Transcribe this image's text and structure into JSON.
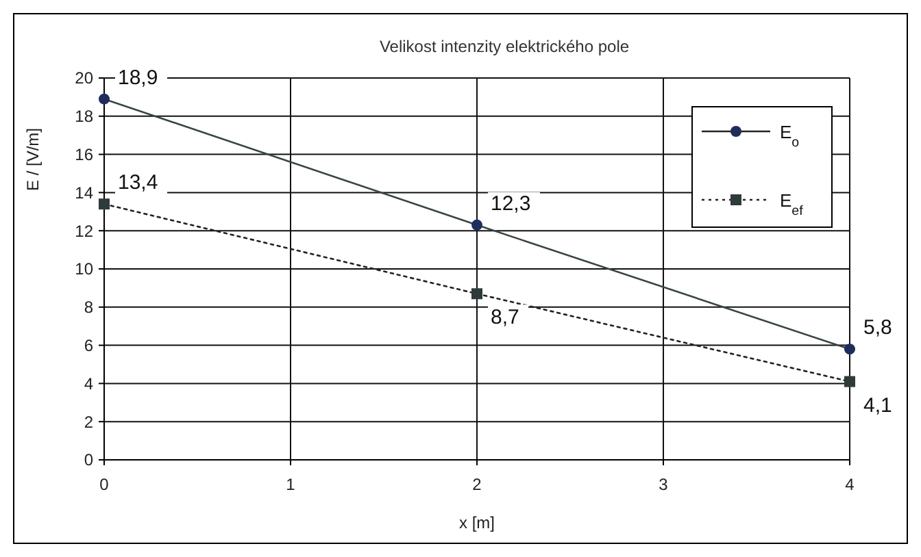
{
  "chart_data": {
    "type": "line",
    "title": "Velikost intenzity elektrického pole",
    "xlabel": "x [m]",
    "ylabel": "E / [V/m]",
    "x": [
      0,
      2,
      4
    ],
    "series": [
      {
        "name": "E$_{o}$",
        "color": "#1f2d5c",
        "values": [
          18.9,
          12.3,
          5.8
        ],
        "value_labels": [
          "18,9",
          "12,3",
          "5,8"
        ],
        "marker": "circle",
        "line_style": "solid"
      },
      {
        "name": "E$_{ef}$",
        "color": "#2f3b3b",
        "values": [
          13.4,
          8.7,
          4.1
        ],
        "value_labels": [
          "13,4",
          "8,7",
          "4,1"
        ],
        "marker": "square",
        "line_style": "dotted"
      }
    ],
    "xlim": [
      0,
      4
    ],
    "xticks": [
      0,
      1,
      2,
      3,
      4
    ],
    "ylim": [
      0,
      20
    ],
    "yticks": [
      0,
      2,
      4,
      6,
      8,
      10,
      12,
      14,
      16,
      18,
      20
    ],
    "grid": true,
    "legend": "top right"
  }
}
